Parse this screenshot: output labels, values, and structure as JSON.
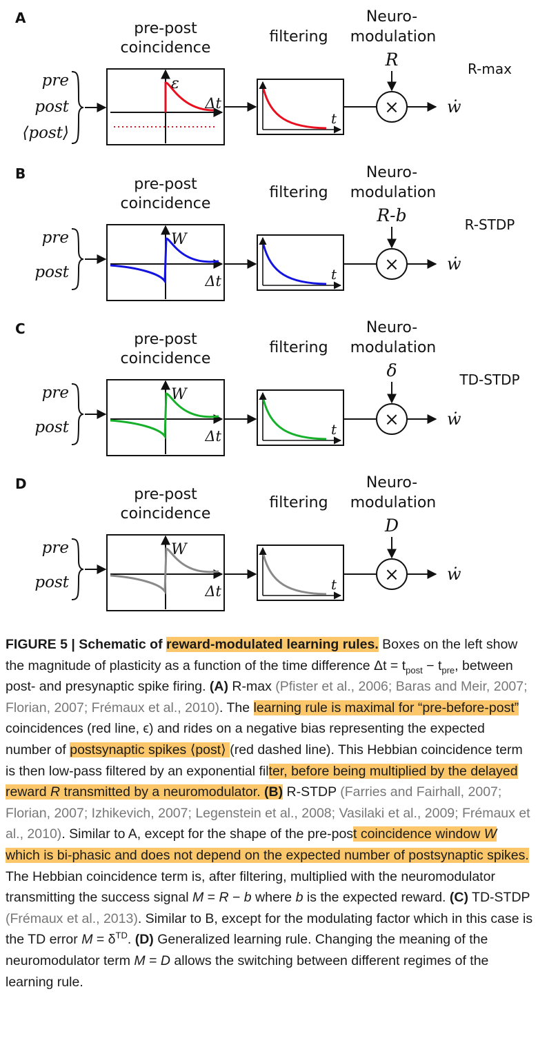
{
  "figure": {
    "panels": [
      {
        "letter": "A",
        "stage1": "pre-post",
        "stage1b": "coincidence",
        "stage2": "filtering",
        "stage3": "Neuro-",
        "stage3b": "modulation",
        "modulator": "R",
        "rule": "R-max",
        "inputs": [
          "pre",
          "post",
          "⟨post⟩"
        ],
        "kernel_label": "ε",
        "delta_label": "Δt",
        "t_label": "t",
        "output": "ẇ",
        "times": "×",
        "color": "#e8101e"
      },
      {
        "letter": "B",
        "stage1": "pre-post",
        "stage1b": "coincidence",
        "stage2": "filtering",
        "stage3": "Neuro-",
        "stage3b": "modulation",
        "modulator": "R-b",
        "rule": "R-STDP",
        "inputs": [
          "pre",
          "post"
        ],
        "kernel_label": "W",
        "delta_label": "Δt",
        "t_label": "t",
        "output": "ẇ",
        "times": "×",
        "color": "#1414e0"
      },
      {
        "letter": "C",
        "stage1": "pre-post",
        "stage1b": "coincidence",
        "stage2": "filtering",
        "stage3": "Neuro-",
        "stage3b": "modulation",
        "modulator": "δ",
        "rule": "TD-STDP",
        "inputs": [
          "pre",
          "post"
        ],
        "kernel_label": "W",
        "delta_label": "Δt",
        "t_label": "t",
        "output": "ẇ",
        "times": "×",
        "color": "#16b02a"
      },
      {
        "letter": "D",
        "stage1": "pre-post",
        "stage1b": "coincidence",
        "stage2": "filtering",
        "stage3": "Neuro-",
        "stage3b": "modulation",
        "modulator": "D",
        "rule": "",
        "inputs": [
          "pre",
          "post"
        ],
        "kernel_label": "W",
        "delta_label": "Δt",
        "t_label": "t",
        "output": "ẇ",
        "times": "×",
        "color": "#8a8a8a"
      }
    ]
  },
  "caption": {
    "fig_label": "FIGURE 5 | Schematic of ",
    "fig_title_hl": "reward-modulated learning rules.",
    "s1": " Boxes on the left show the magnitude of plasticity as a function of the time difference ",
    "dt_eq": "Δt = t",
    "sub_post": "post",
    "minus": " − t",
    "sub_pre": "pre",
    "s2": ", between post- and presynaptic spike firing. ",
    "a_label": "(A)",
    "a_name": " R-max ",
    "a_refs": "(Pfister et al., 2006; Baras and Meir, 2007; Florian, 2007; Frémaux et al., 2010)",
    "a1": ". The ",
    "a_hl1": "learning rule is maximal for “pre-before-post”",
    "a2": " coincidences (red line, ϵ) and rides on a negative bias representing the expected number of ",
    "a_hl2": "postsynaptic spikes ⟨post⟩ ",
    "a3": "(red dashed line). This Hebbian coincidence term is then low-pass filtered by an exponential fil",
    "a_hl3a": "ter, before being multiplied by the delayed reward ",
    "a_hl3_R": "R",
    "a_hl3b": " transmitted by a neuromodulator. ",
    "b_label": "(B)",
    "b_name": " R-STDP ",
    "b_refs": "(Farries and Fairhall, 2007; Florian, 2007; Izhikevich, 2007; Legenstein et al., 2008; Vasilaki et al., 2009; Frémaux et al., 2010)",
    "b1": ". Similar to A, except for the shape of the pre-pos",
    "b_hl1a": "t coincidence window ",
    "b_hl1_W": "W",
    "b_hl1b": " which is bi-phasic and does not depend on the expected number of postsynaptic spikes.",
    "b2": " The Hebbian coincidence term is, after filtering, multiplied with the neuromodulator transmitting the success signal ",
    "b_M": "M",
    "b_eq": " = ",
    "b_R": "R",
    "b_minus": " − ",
    "b_b": "b",
    "b3": " where ",
    "b_b2": "b",
    "b4": " is the expected reward. ",
    "c_label": "(C)",
    "c_name": " TD-STDP ",
    "c_refs": "(Frémaux et al., 2013)",
    "c1": ". Similar to B, except for the modulating factor which in this case is the TD error ",
    "c_M": "M",
    "c_eq": " = δ",
    "c_sup": "TD",
    "c2": ". ",
    "d_label": "(D)",
    "d1": " Generalized learning rule. Changing the meaning of the neuromodulator term ",
    "d_M": "M",
    "d_eq": " = ",
    "d_D": "D",
    "d2": " allows the switching between different regimes of the learning rule."
  }
}
